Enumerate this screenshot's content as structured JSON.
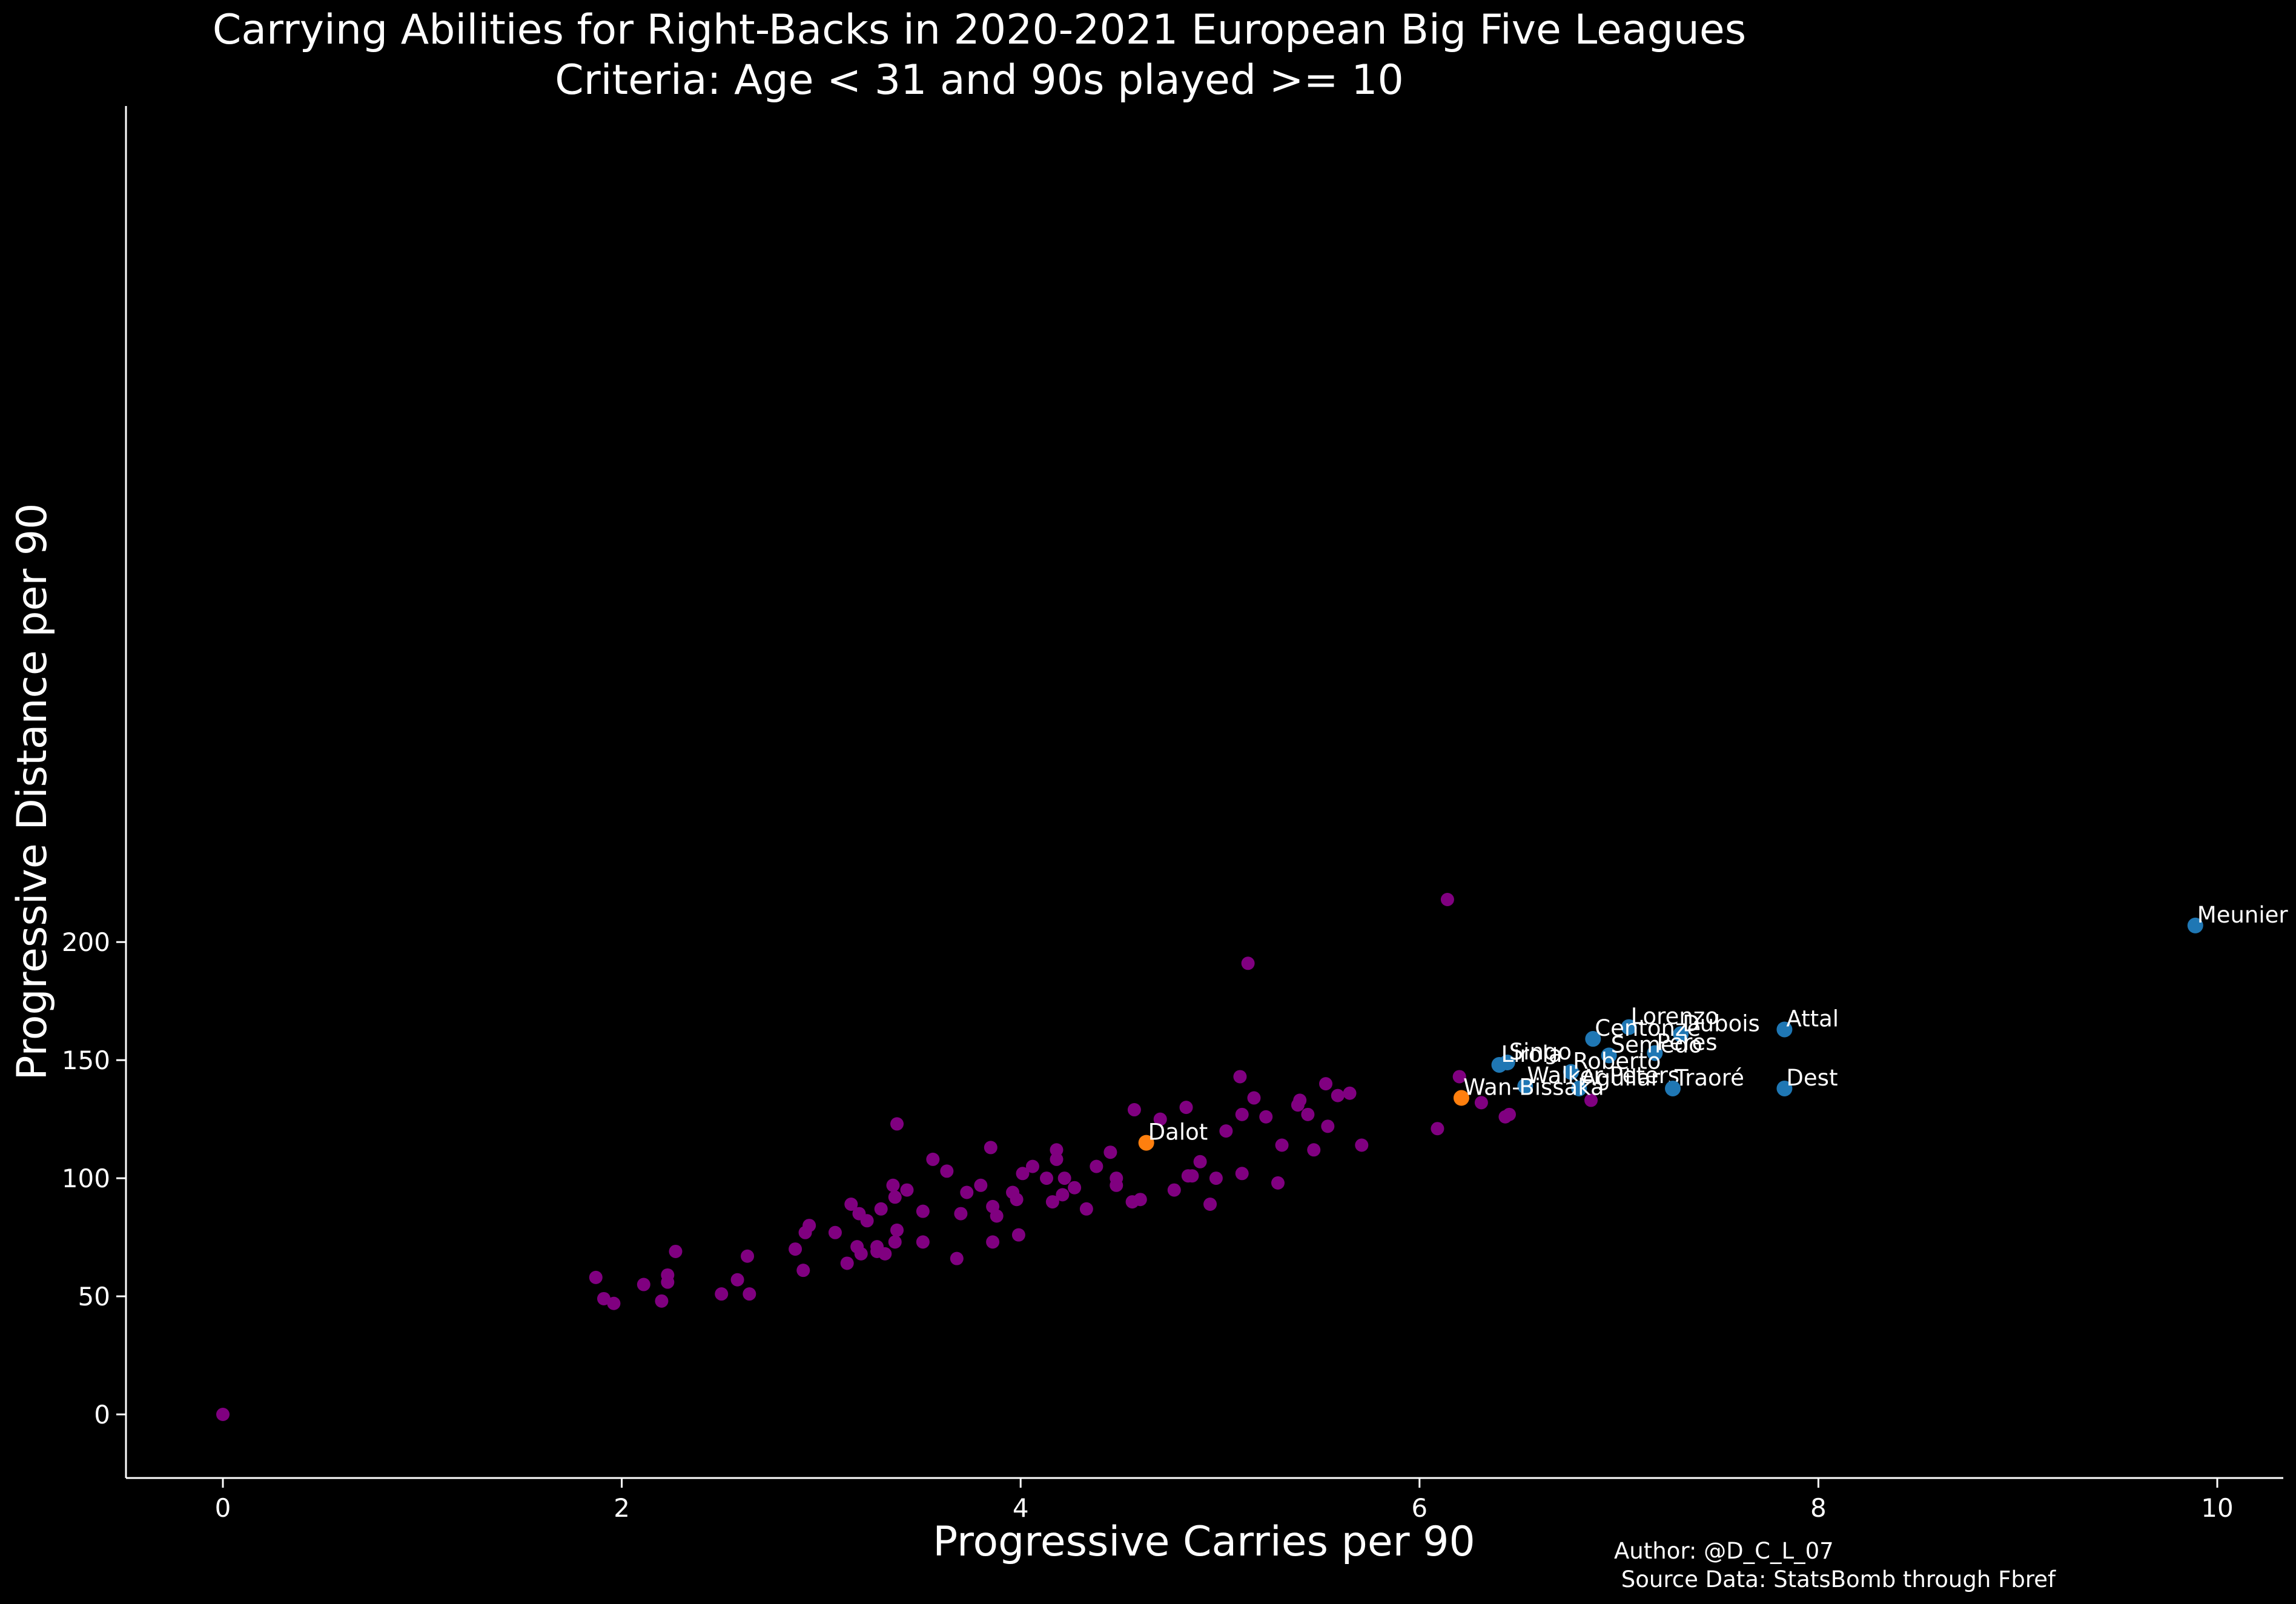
{
  "chart_data": {
    "type": "scatter",
    "title": "Carrying Abilities for Right-Backs in 2020-2021 European Big Five Leagues",
    "subtitle": "Criteria: Age < 31 and 90s played >= 10",
    "xlabel": "Progressive Carries per 90",
    "ylabel": "Progressive Distance per 90",
    "xlim": [
      -0.5,
      10.4
    ],
    "ylim": [
      -11,
      229
    ],
    "xticks": [
      0,
      2,
      4,
      6,
      8,
      10
    ],
    "yticks": [
      0,
      50,
      100,
      150,
      200
    ],
    "grid": false,
    "colors": {
      "background": "#000000",
      "axis": "#ffffff",
      "others": "#800080",
      "highlight": "#1f77b4",
      "featured": "#ff7f0e"
    },
    "highlighted": [
      {
        "name": "Meunier",
        "x": 9.89,
        "y": 207
      },
      {
        "name": "Attal",
        "x": 7.83,
        "y": 163
      },
      {
        "name": "Lorenzo",
        "x": 7.05,
        "y": 164
      },
      {
        "name": "Dubois",
        "x": 7.31,
        "y": 161
      },
      {
        "name": "Centonze",
        "x": 6.87,
        "y": 159
      },
      {
        "name": "Peres",
        "x": 7.18,
        "y": 153
      },
      {
        "name": "Semedo",
        "x": 6.95,
        "y": 152
      },
      {
        "name": "Singo",
        "x": 6.44,
        "y": 149
      },
      {
        "name": "Lirola",
        "x": 6.4,
        "y": 148
      },
      {
        "name": "Roberto",
        "x": 6.76,
        "y": 145
      },
      {
        "name": "Walker-Peters",
        "x": 6.53,
        "y": 139
      },
      {
        "name": "Aguilar",
        "x": 6.8,
        "y": 138
      },
      {
        "name": "Traoré",
        "x": 7.27,
        "y": 138
      },
      {
        "name": "Dest",
        "x": 7.83,
        "y": 138
      }
    ],
    "featured": [
      {
        "name": "Wan-Bissaka",
        "x": 6.21,
        "y": 134
      },
      {
        "name": "Dalot",
        "x": 4.63,
        "y": 115
      }
    ],
    "others": [
      [
        6.14,
        218
      ],
      [
        5.14,
        191
      ],
      [
        5.1,
        143
      ],
      [
        6.2,
        143
      ],
      [
        5.53,
        140
      ],
      [
        5.65,
        136
      ],
      [
        5.59,
        135
      ],
      [
        5.17,
        134
      ],
      [
        5.4,
        133
      ],
      [
        5.39,
        131
      ],
      [
        4.83,
        130
      ],
      [
        4.57,
        129
      ],
      [
        5.11,
        127
      ],
      [
        5.44,
        127
      ],
      [
        6.45,
        127
      ],
      [
        5.23,
        126
      ],
      [
        6.43,
        126
      ],
      [
        4.7,
        125
      ],
      [
        6.31,
        132
      ],
      [
        6.86,
        133
      ],
      [
        3.38,
        123
      ],
      [
        5.54,
        122
      ],
      [
        6.09,
        121
      ],
      [
        5.03,
        120
      ],
      [
        5.71,
        114
      ],
      [
        5.31,
        114
      ],
      [
        3.85,
        113
      ],
      [
        5.47,
        112
      ],
      [
        4.18,
        112
      ],
      [
        4.45,
        111
      ],
      [
        3.56,
        108
      ],
      [
        4.18,
        108
      ],
      [
        4.9,
        107
      ],
      [
        4.38,
        105
      ],
      [
        4.06,
        105
      ],
      [
        3.63,
        103
      ],
      [
        4.01,
        102
      ],
      [
        5.11,
        102
      ],
      [
        4.84,
        101
      ],
      [
        4.86,
        101
      ],
      [
        4.22,
        100
      ],
      [
        4.13,
        100
      ],
      [
        4.48,
        100
      ],
      [
        4.98,
        100
      ],
      [
        5.29,
        98
      ],
      [
        3.36,
        97
      ],
      [
        3.8,
        97
      ],
      [
        4.48,
        97
      ],
      [
        4.27,
        96
      ],
      [
        3.43,
        95
      ],
      [
        4.77,
        95
      ],
      [
        3.73,
        94
      ],
      [
        3.96,
        94
      ],
      [
        4.21,
        93
      ],
      [
        3.37,
        92
      ],
      [
        4.6,
        91
      ],
      [
        3.98,
        91
      ],
      [
        4.56,
        90
      ],
      [
        4.16,
        90
      ],
      [
        4.95,
        89
      ],
      [
        3.15,
        89
      ],
      [
        3.86,
        88
      ],
      [
        3.3,
        87
      ],
      [
        4.33,
        87
      ],
      [
        3.51,
        86
      ],
      [
        3.19,
        85
      ],
      [
        3.7,
        85
      ],
      [
        3.88,
        84
      ],
      [
        3.23,
        82
      ],
      [
        2.94,
        80
      ],
      [
        3.38,
        78
      ],
      [
        2.92,
        77
      ],
      [
        3.07,
        77
      ],
      [
        3.99,
        76
      ],
      [
        3.86,
        73
      ],
      [
        3.37,
        73
      ],
      [
        3.51,
        73
      ],
      [
        3.18,
        71
      ],
      [
        3.28,
        71
      ],
      [
        2.87,
        70
      ],
      [
        3.28,
        69
      ],
      [
        2.27,
        69
      ],
      [
        3.2,
        68
      ],
      [
        3.32,
        68
      ],
      [
        2.63,
        67
      ],
      [
        3.68,
        66
      ],
      [
        3.13,
        64
      ],
      [
        2.91,
        61
      ],
      [
        2.23,
        59
      ],
      [
        1.87,
        58
      ],
      [
        2.58,
        57
      ],
      [
        2.23,
        56
      ],
      [
        2.11,
        55
      ],
      [
        2.5,
        51
      ],
      [
        2.64,
        51
      ],
      [
        1.91,
        49
      ],
      [
        2.2,
        48
      ],
      [
        1.96,
        47
      ],
      [
        0,
        0
      ]
    ]
  },
  "credits": {
    "author": "Author: @D_C_L_07",
    "source": " Source Data: StatsBomb through Fbref"
  }
}
